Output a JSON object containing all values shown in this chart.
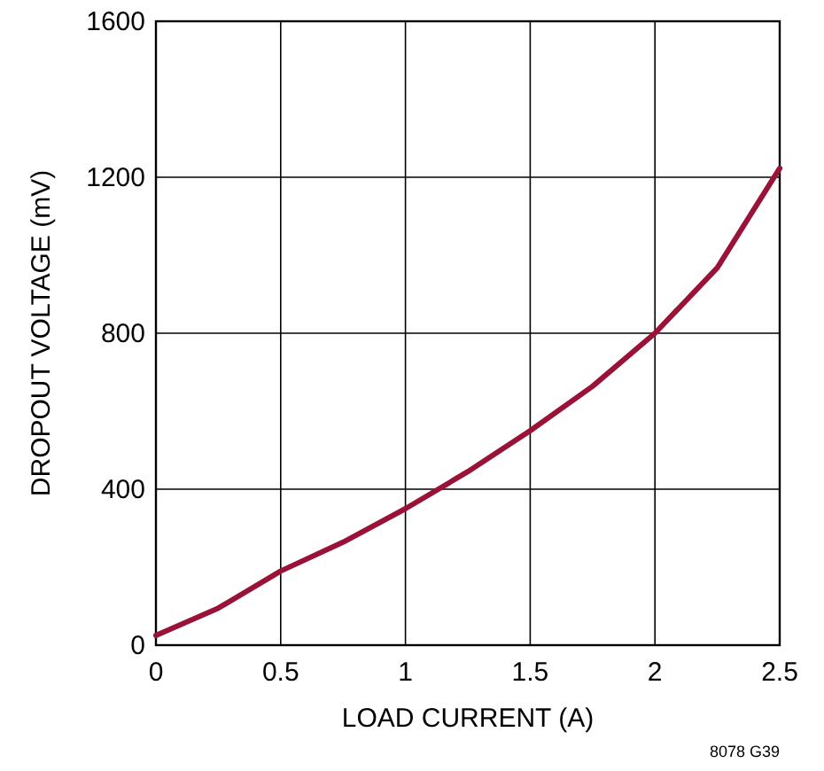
{
  "chart_data": {
    "type": "line",
    "xlabel": "LOAD CURRENT (A)",
    "ylabel": "DROPOUT VOLTAGE (mV)",
    "x": [
      0,
      0.25,
      0.5,
      0.75,
      1,
      1.25,
      1.5,
      1.75,
      2,
      2.25,
      2.5
    ],
    "series": [
      {
        "color": "#9b1238",
        "values": [
          25,
          95,
          190,
          264,
          350,
          445,
          550,
          664,
          800,
          968,
          1223
        ]
      }
    ],
    "xlim": [
      0,
      2.5
    ],
    "xticks": [
      0,
      0.5,
      1,
      1.5,
      2,
      2.5
    ],
    "ylim": [
      0,
      1600
    ],
    "yticks": [
      0,
      400,
      800,
      1200,
      1600
    ],
    "grid": true,
    "marker": "none",
    "line_style": "solid",
    "annotations": [
      "8078 G39"
    ]
  }
}
